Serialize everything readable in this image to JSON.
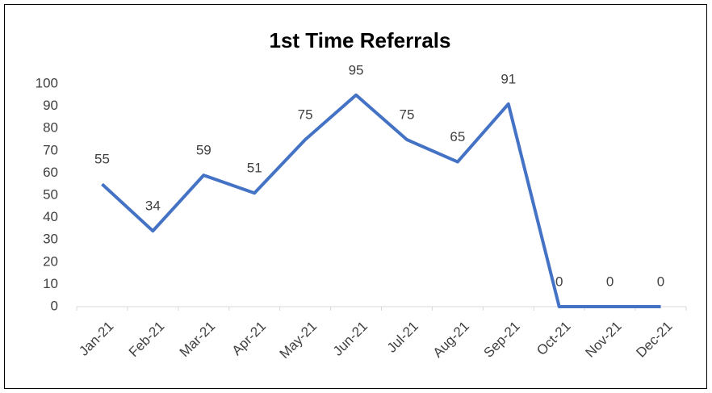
{
  "chart_data": {
    "type": "line",
    "title": "1st Time Referrals",
    "categories": [
      "Jan-21",
      "Feb-21",
      "Mar-21",
      "Apr-21",
      "May-21",
      "Jun-21",
      "Jul-21",
      "Aug-21",
      "Sep-21",
      "Oct-21",
      "Nov-21",
      "Dec-21"
    ],
    "series": [
      {
        "name": "1st Time Referrals",
        "color": "#4472c4",
        "values": [
          55,
          34,
          59,
          51,
          75,
          95,
          75,
          65,
          91,
          0,
          0,
          0
        ]
      }
    ],
    "ylim": [
      0,
      100
    ],
    "yticks": [
      0,
      10,
      20,
      30,
      40,
      50,
      60,
      70,
      80,
      90,
      100
    ],
    "grid": false,
    "data_labels": true
  }
}
